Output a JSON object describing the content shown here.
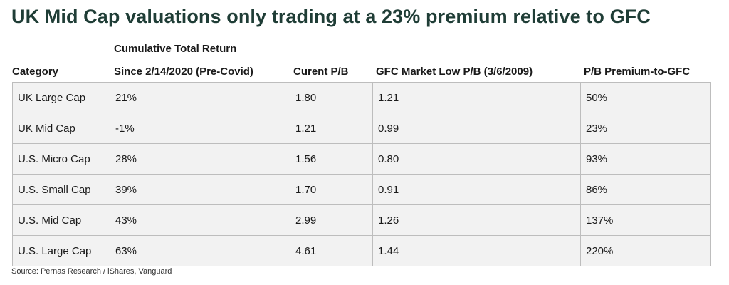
{
  "title": "UK Mid Cap valuations only trading at a 23% premium relative to GFC",
  "headers": {
    "cumulative_top": "Cumulative Total Return",
    "category": "Category",
    "since": "Since 2/14/2020 (Pre-Covid)",
    "current_pb": "Curent P/B",
    "gfc_low": "GFC Market Low P/B (3/6/2009)",
    "premium": "P/B Premium-to-GFC"
  },
  "rows": [
    [
      "UK Large Cap",
      "21%",
      "1.80",
      "1.21",
      "50%"
    ],
    [
      "UK Mid Cap",
      "-1%",
      "1.21",
      "0.99",
      "23%"
    ],
    [
      "U.S. Micro Cap",
      "28%",
      "1.56",
      "0.80",
      "93%"
    ],
    [
      "U.S. Small Cap",
      "39%",
      "1.70",
      "0.91",
      "86%"
    ],
    [
      "U.S. Mid Cap",
      "43%",
      "2.99",
      "1.26",
      "137%"
    ],
    [
      "U.S. Large Cap",
      "63%",
      "4.61",
      "1.44",
      "220%"
    ]
  ],
  "source": "Source: Pernas Research / iShares, Vanguard",
  "colors": {
    "title": "#1f3d36",
    "cell_background": "#f2f2f2",
    "cell_border": "#bdbdbd"
  }
}
